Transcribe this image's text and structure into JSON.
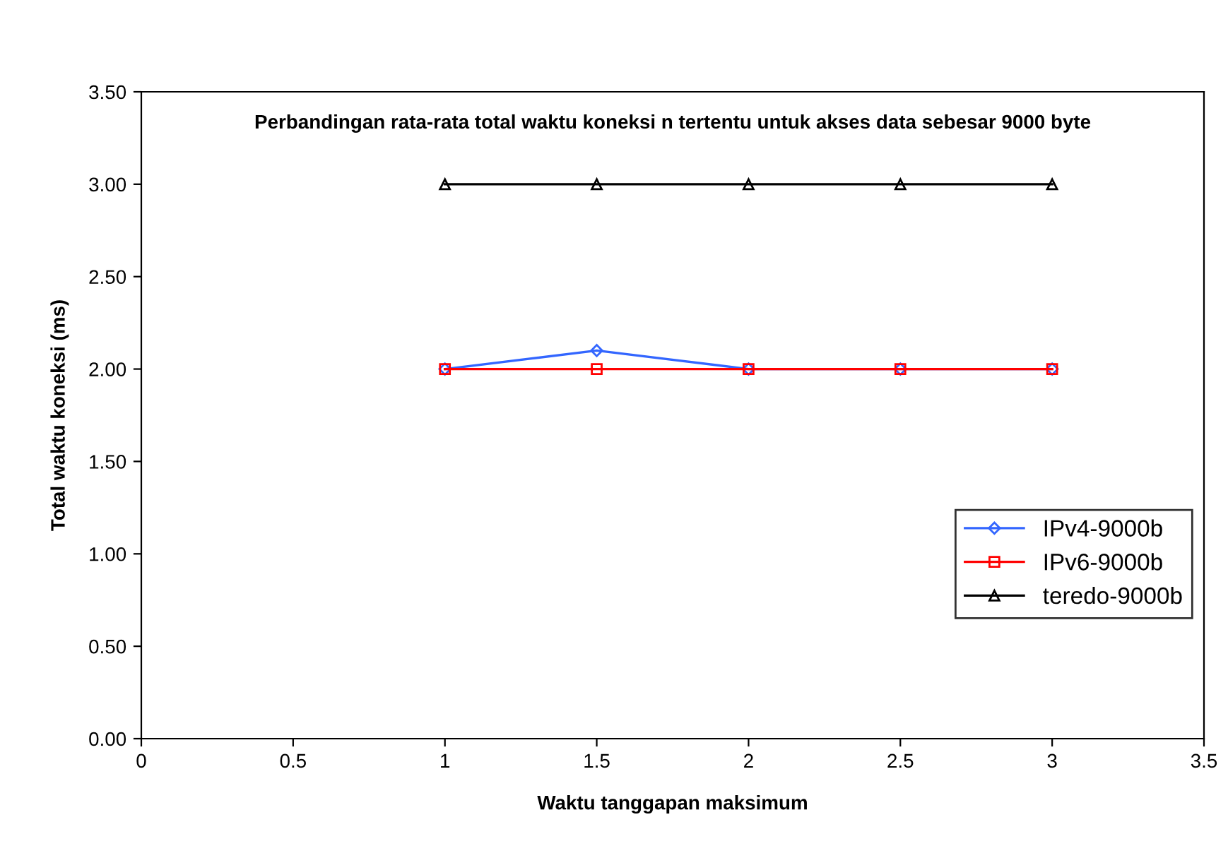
{
  "chart_data": {
    "type": "line",
    "title": "Perbandingan rata-rata total waktu koneksi n tertentu untuk akses data sebesar 9000 byte",
    "xlabel": "Waktu tanggapan maksimum",
    "ylabel": "Total waktu koneksi (ms)",
    "x": [
      1,
      1.5,
      2,
      2.5,
      3
    ],
    "series": [
      {
        "name": "IPv4-9000b",
        "color": "#3366ff",
        "marker": "diamond",
        "values": [
          2.0,
          2.1,
          2.0,
          2.0,
          2.0
        ]
      },
      {
        "name": "IPv6-9000b",
        "color": "#ff0000",
        "marker": "square",
        "values": [
          2.0,
          2.0,
          2.0,
          2.0,
          2.0
        ]
      },
      {
        "name": "teredo-9000b",
        "color": "#000000",
        "marker": "triangle",
        "values": [
          3.0,
          3.0,
          3.0,
          3.0,
          3.0
        ]
      }
    ],
    "xlim": [
      0,
      3.5
    ],
    "xticks": [
      0,
      0.5,
      1,
      1.5,
      2,
      2.5,
      3,
      3.5
    ],
    "ylim": [
      0,
      3.5
    ],
    "yticks": [
      {
        "value": 0,
        "label": "0.00"
      },
      {
        "value": 0.5,
        "label": "0.50"
      },
      {
        "value": 1,
        "label": "1.00"
      },
      {
        "value": 1.5,
        "label": "1.50"
      },
      {
        "value": 2,
        "label": "2.00"
      },
      {
        "value": 2.5,
        "label": "2.50"
      },
      {
        "value": 3,
        "label": "3.00"
      },
      {
        "value": 3.5,
        "label": "3.50"
      }
    ],
    "grid": false,
    "legend": "right",
    "line_style": "solid"
  }
}
